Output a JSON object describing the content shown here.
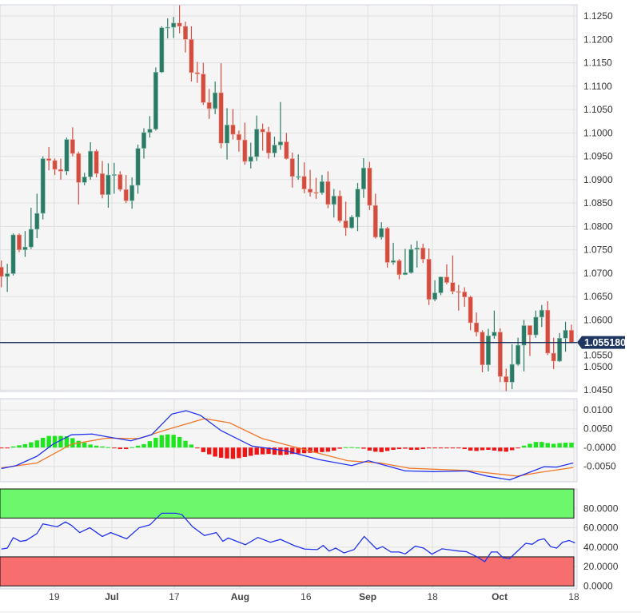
{
  "chart_data": [
    {
      "type": "candlestick",
      "title": "",
      "ylim": [
        1.0447,
        1.1274
      ],
      "yticks": [
        "1.1250",
        "1.1200",
        "1.1150",
        "1.1100",
        "1.1050",
        "1.1000",
        "1.0950",
        "1.0900",
        "1.0850",
        "1.0800",
        "1.0750",
        "1.0700",
        "1.0650",
        "1.0600",
        "1.0550",
        "1.0500",
        "1.0450"
      ],
      "ytick_values": [
        1.125,
        1.12,
        1.115,
        1.11,
        1.105,
        1.1,
        1.095,
        1.09,
        1.085,
        1.08,
        1.075,
        1.07,
        1.065,
        1.06,
        1.055,
        1.05,
        1.045
      ],
      "current_price": 1.05518,
      "current_price_label": "1.055180",
      "colors": {
        "up": "#2b7a65",
        "down": "#d34c3d",
        "price_line": "#1f3760"
      },
      "candles_ohlc": [
        [
          1.0713,
          1.0727,
          1.067,
          1.0693
        ],
        [
          1.0693,
          1.072,
          1.066,
          1.0699
        ],
        [
          1.0699,
          1.0785,
          1.0695,
          1.0782
        ],
        [
          1.0782,
          1.0785,
          1.0745,
          1.075
        ],
        [
          1.075,
          1.079,
          1.0735,
          1.0756
        ],
        [
          1.0756,
          1.084,
          1.0752,
          1.0794
        ],
        [
          1.0794,
          1.087,
          1.0775,
          1.0828
        ],
        [
          1.0828,
          1.095,
          1.0815,
          1.0945
        ],
        [
          1.0945,
          1.097,
          1.092,
          1.0941
        ],
        [
          1.0941,
          1.0945,
          1.091,
          1.0922
        ],
        [
          1.0922,
          1.0945,
          1.09,
          1.0918
        ],
        [
          1.0918,
          1.099,
          1.091,
          1.0986
        ],
        [
          1.0986,
          1.1012,
          1.095,
          1.0956
        ],
        [
          1.0956,
          1.096,
          1.0847,
          1.0894
        ],
        [
          1.0894,
          1.0915,
          1.0888,
          1.0906
        ],
        [
          1.0906,
          1.098,
          1.09,
          1.0961
        ],
        [
          1.0961,
          1.0965,
          1.0905,
          1.0913
        ],
        [
          1.0913,
          1.094,
          1.086,
          1.0868
        ],
        [
          1.0868,
          1.0935,
          1.084,
          1.091
        ],
        [
          1.091,
          1.0936,
          1.087,
          1.0911
        ],
        [
          1.0911,
          1.0918,
          1.0875,
          1.0879
        ],
        [
          1.0879,
          1.091,
          1.085,
          1.0855
        ],
        [
          1.0855,
          1.0905,
          1.0838,
          1.0888
        ],
        [
          1.0888,
          1.0975,
          1.087,
          1.0967
        ],
        [
          1.0967,
          1.101,
          1.0945,
          1.1001
        ],
        [
          1.1001,
          1.1036,
          1.099,
          1.1008
        ],
        [
          1.1008,
          1.114,
          1.1005,
          1.113
        ],
        [
          1.113,
          1.1228,
          1.1128,
          1.1225
        ],
        [
          1.1225,
          1.1245,
          1.1202,
          1.1226
        ],
        [
          1.1226,
          1.1248,
          1.1203,
          1.1235
        ],
        [
          1.1235,
          1.1273,
          1.1213,
          1.1228
        ],
        [
          1.1228,
          1.1238,
          1.1172,
          1.12
        ],
        [
          1.12,
          1.1228,
          1.111,
          1.1129
        ],
        [
          1.1129,
          1.1152,
          1.1107,
          1.1126
        ],
        [
          1.1126,
          1.115,
          1.106,
          1.1065
        ],
        [
          1.1065,
          1.1094,
          1.103,
          1.1052
        ],
        [
          1.1052,
          1.111,
          1.104,
          1.1086
        ],
        [
          1.1086,
          1.1149,
          1.0967,
          1.0978
        ],
        [
          1.0978,
          1.1053,
          1.0943,
          1.1017
        ],
        [
          1.1017,
          1.1051,
          1.0986,
          1.0997
        ],
        [
          1.0997,
          1.1005,
          1.096,
          1.0985
        ],
        [
          1.0985,
          1.1022,
          1.0932,
          1.0939
        ],
        [
          1.0939,
          1.0979,
          1.0924,
          1.0949
        ],
        [
          1.0949,
          1.1037,
          1.094,
          1.1008
        ],
        [
          1.1008,
          1.102,
          1.0962,
          1.1002
        ],
        [
          1.1002,
          1.1013,
          1.0945,
          1.0957
        ],
        [
          1.0957,
          1.0992,
          1.0948,
          1.0974
        ],
        [
          1.0974,
          1.1066,
          1.0964,
          1.0981
        ],
        [
          1.0981,
          1.1,
          1.0943,
          1.0945
        ],
        [
          1.0945,
          1.0958,
          1.0883,
          1.0907
        ],
        [
          1.0907,
          1.0954,
          1.09,
          1.0907
        ],
        [
          1.0907,
          1.0937,
          1.0871,
          1.088
        ],
        [
          1.088,
          1.0921,
          1.0864,
          1.0873
        ],
        [
          1.0873,
          1.0904,
          1.0859,
          1.0872
        ],
        [
          1.0872,
          1.091,
          1.0868,
          1.0896
        ],
        [
          1.0896,
          1.0918,
          1.0839,
          1.0847
        ],
        [
          1.0847,
          1.088,
          1.0819,
          1.0865
        ],
        [
          1.0865,
          1.0877,
          1.0808,
          1.0812
        ],
        [
          1.0812,
          1.0853,
          1.078,
          1.0797
        ],
        [
          1.0797,
          1.0824,
          1.0795,
          1.082
        ],
        [
          1.082,
          1.0893,
          1.079,
          1.088
        ],
        [
          1.088,
          1.0946,
          1.0861,
          1.0925
        ],
        [
          1.0925,
          1.0938,
          1.0835,
          1.0845
        ],
        [
          1.0845,
          1.087,
          1.0774,
          1.0777
        ],
        [
          1.0777,
          1.0809,
          1.0772,
          1.0796
        ],
        [
          1.0796,
          1.0799,
          1.0712,
          1.0723
        ],
        [
          1.0723,
          1.0765,
          1.0718,
          1.0727
        ],
        [
          1.0727,
          1.073,
          1.0687,
          1.0697
        ],
        [
          1.0697,
          1.0752,
          1.0696,
          1.0701
        ],
        [
          1.0701,
          1.0761,
          1.0699,
          1.0751
        ],
        [
          1.0751,
          1.0769,
          1.0712,
          1.0754
        ],
        [
          1.0754,
          1.0763,
          1.0722,
          1.073
        ],
        [
          1.073,
          1.0753,
          1.0632,
          1.0644
        ],
        [
          1.0644,
          1.0685,
          1.064,
          1.0658
        ],
        [
          1.0658,
          1.0693,
          1.0653,
          1.0692
        ],
        [
          1.0692,
          1.0719,
          1.0676,
          1.068
        ],
        [
          1.068,
          1.0738,
          1.0655,
          1.0661
        ],
        [
          1.0661,
          1.0675,
          1.062,
          1.066
        ],
        [
          1.066,
          1.067,
          1.0628,
          1.0649
        ],
        [
          1.0649,
          1.0652,
          1.0578,
          1.0594
        ],
        [
          1.0594,
          1.0616,
          1.0565,
          1.0574
        ],
        [
          1.0574,
          1.0578,
          1.0488,
          1.0504
        ],
        [
          1.0504,
          1.0581,
          1.049,
          1.0566
        ],
        [
          1.0566,
          1.062,
          1.056,
          1.0574
        ],
        [
          1.0574,
          1.0582,
          1.0467,
          1.0479
        ],
        [
          1.0479,
          1.0496,
          1.0448,
          1.0467
        ],
        [
          1.0467,
          1.0548,
          1.0452,
          1.0505
        ],
        [
          1.0505,
          1.0562,
          1.0502,
          1.0546
        ],
        [
          1.0546,
          1.06,
          1.049,
          1.0588
        ],
        [
          1.0588,
          1.0588,
          1.0523,
          1.0568
        ],
        [
          1.0568,
          1.062,
          1.0562,
          1.0606
        ],
        [
          1.0606,
          1.0632,
          1.0585,
          1.0621
        ],
        [
          1.0621,
          1.064,
          1.0525,
          1.0529
        ],
        [
          1.0529,
          1.0562,
          1.0495,
          1.0512
        ],
        [
          1.0512,
          1.0572,
          1.051,
          1.0561
        ],
        [
          1.0561,
          1.0596,
          1.0532,
          1.0578
        ],
        [
          1.0578,
          1.059,
          1.055,
          1.0552
        ]
      ],
      "xticks": [
        {
          "label": "19",
          "index": 8.9,
          "bold": false
        },
        {
          "label": "Jul",
          "index": 18.6,
          "bold": true
        },
        {
          "label": "17",
          "index": 29.1,
          "bold": false
        },
        {
          "label": "Aug",
          "index": 40.2,
          "bold": true
        },
        {
          "label": "16",
          "index": 51.3,
          "bold": false
        },
        {
          "label": "Sep",
          "index": 61.7,
          "bold": true
        },
        {
          "label": "18",
          "index": 72.6,
          "bold": false
        },
        {
          "label": "Oct",
          "index": 83.9,
          "bold": true
        },
        {
          "label": "18",
          "index": 96.4,
          "bold": false
        }
      ]
    },
    {
      "type": "macd",
      "ylim": [
        -0.0091,
        0.013
      ],
      "yticks": [
        "0.0100",
        "0.0050",
        "-0.0000",
        "-0.0050"
      ],
      "ytick_values": [
        0.01,
        0.005,
        0,
        -0.005
      ],
      "colors": {
        "macd": "#2233ee",
        "signal": "#f07828",
        "hist_up": "#1ee61e",
        "hist_down": "#ee1515"
      },
      "macd_line": [
        [
          0,
          -0.0056
        ],
        [
          2.5,
          -0.0048
        ],
        [
          6,
          -0.0023
        ],
        [
          8.7,
          0.0009
        ],
        [
          11.8,
          0.0034
        ],
        [
          15.3,
          0.0036
        ],
        [
          17.7,
          0.0029
        ],
        [
          21.8,
          0.0018
        ],
        [
          25.3,
          0.0034
        ],
        [
          28.7,
          0.0089
        ],
        [
          31.1,
          0.0098
        ],
        [
          33.5,
          0.0086
        ],
        [
          37,
          0.0045
        ],
        [
          42.2,
          0.0004
        ],
        [
          48,
          -0.0009
        ],
        [
          53.5,
          -0.0032
        ],
        [
          59,
          -0.0048
        ],
        [
          61.8,
          -0.0035
        ],
        [
          68,
          -0.0062
        ],
        [
          72.8,
          -0.0064
        ],
        [
          78.3,
          -0.0062
        ],
        [
          81.8,
          -0.0076
        ],
        [
          85.6,
          -0.0086
        ],
        [
          91.4,
          -0.0051
        ],
        [
          93.5,
          -0.0052
        ],
        [
          96.3,
          -0.0041
        ]
      ],
      "signal_line": [
        [
          0,
          -0.0054
        ],
        [
          6,
          -0.0041
        ],
        [
          11.8,
          0.0009
        ],
        [
          17.7,
          0.0025
        ],
        [
          23.2,
          0.0024
        ],
        [
          27.3,
          0.0045
        ],
        [
          34.2,
          0.0077
        ],
        [
          38.4,
          0.0066
        ],
        [
          43.9,
          0.0024
        ],
        [
          50,
          -0.0001
        ],
        [
          58.3,
          -0.0035
        ],
        [
          63.8,
          -0.0041
        ],
        [
          68.7,
          -0.0055
        ],
        [
          78.3,
          -0.0061
        ],
        [
          86.9,
          -0.0076
        ],
        [
          90.7,
          -0.0066
        ],
        [
          96.3,
          -0.0053
        ]
      ],
      "histogram": [
        -0.0002,
        -0.0002,
        0.0003,
        0.0006,
        0.0009,
        0.0014,
        0.0019,
        0.0026,
        0.0031,
        0.0031,
        0.0031,
        0.003,
        0.0025,
        0.0018,
        0.0013,
        0.0008,
        0.0005,
        0.0003,
        0.0001,
        -0.0001,
        -0.0004,
        -0.0004,
        0.0001,
        0.0005,
        0.0009,
        0.0017,
        0.0026,
        0.0033,
        0.0035,
        0.0034,
        0.0028,
        0.0018,
        0.0008,
        -0.0001,
        -0.0012,
        -0.0018,
        -0.0024,
        -0.0027,
        -0.0029,
        -0.003,
        -0.0028,
        -0.0025,
        -0.0022,
        -0.0019,
        -0.0018,
        -0.0017,
        -0.0019,
        -0.002,
        -0.0019,
        -0.0017,
        -0.0016,
        -0.0015,
        -0.0014,
        -0.0014,
        -0.0012,
        -0.0011,
        -0.0008,
        -0.0003,
        0.0001,
        0.0001,
        0.0,
        -0.0003,
        -0.0008,
        -0.0011,
        -0.0012,
        -0.0009,
        -0.0006,
        -0.0004,
        -0.0003,
        -0.0006,
        -0.0006,
        -0.0004,
        -0.0002,
        -0.0002,
        -0.0001,
        -0.0001,
        -0.0002,
        -0.0001,
        -0.0004,
        -0.0008,
        -0.0009,
        -0.0007,
        -0.0006,
        -0.0008,
        -0.001,
        -0.0011,
        -0.0007,
        -0.0002,
        0.0005,
        0.001,
        0.0015,
        0.0015,
        0.0012,
        0.001,
        0.0012,
        0.0013,
        0.0013
      ]
    },
    {
      "type": "rsi",
      "ylim": [
        -3,
        100
      ],
      "yticks": [
        "80.0000",
        "60.0000",
        "40.0000",
        "20.0000",
        "0.0000"
      ],
      "ytick_values": [
        80,
        60,
        40,
        20,
        0
      ],
      "overbought": [
        70,
        100
      ],
      "oversold": [
        0,
        30
      ],
      "colors": {
        "line": "#2233ee",
        "overbought_band": "#6df76d",
        "oversold_band": "#f76e6e"
      },
      "rsi_line": [
        [
          0,
          38
        ],
        [
          1,
          39
        ],
        [
          2,
          49.7
        ],
        [
          3.2,
          46
        ],
        [
          4.2,
          47
        ],
        [
          6,
          54
        ],
        [
          7,
          64
        ],
        [
          9.4,
          61
        ],
        [
          10.8,
          66
        ],
        [
          11.8,
          62.5
        ],
        [
          13.2,
          55
        ],
        [
          14.9,
          60
        ],
        [
          17,
          51
        ],
        [
          18.4,
          55
        ],
        [
          21.1,
          48.6
        ],
        [
          23.2,
          60
        ],
        [
          25,
          63
        ],
        [
          27,
          75
        ],
        [
          29.4,
          75
        ],
        [
          30.4,
          73.6
        ],
        [
          32.2,
          61
        ],
        [
          34.2,
          52
        ],
        [
          36.2,
          55
        ],
        [
          37.3,
          46
        ],
        [
          38.2,
          49.4
        ],
        [
          41.1,
          42.5
        ],
        [
          43.2,
          50
        ],
        [
          45.3,
          45
        ],
        [
          47,
          48
        ],
        [
          49.4,
          41.4
        ],
        [
          51.1,
          38
        ],
        [
          53.2,
          37.5
        ],
        [
          54.2,
          41.7
        ],
        [
          55.2,
          36
        ],
        [
          56.3,
          39
        ],
        [
          57.7,
          34
        ],
        [
          59.4,
          37.5
        ],
        [
          61.1,
          51
        ],
        [
          63.2,
          38
        ],
        [
          64.2,
          40.5
        ],
        [
          65.6,
          35
        ],
        [
          67,
          35
        ],
        [
          68,
          33
        ],
        [
          69.7,
          41
        ],
        [
          71.1,
          39
        ],
        [
          72.5,
          32.8
        ],
        [
          74.2,
          38.3
        ],
        [
          77,
          36
        ],
        [
          78.3,
          35.3
        ],
        [
          80.1,
          30
        ],
        [
          81.4,
          25
        ],
        [
          82.5,
          35
        ],
        [
          83.5,
          35
        ],
        [
          84.5,
          29
        ],
        [
          85.6,
          28.3
        ],
        [
          88.3,
          43.9
        ],
        [
          89.4,
          43
        ],
        [
          90.4,
          47.2
        ],
        [
          91.4,
          48.6
        ],
        [
          92.5,
          40.5
        ],
        [
          93.5,
          39
        ],
        [
          94.5,
          45
        ],
        [
          95.6,
          46.9
        ],
        [
          96.6,
          44.4
        ]
      ]
    }
  ]
}
